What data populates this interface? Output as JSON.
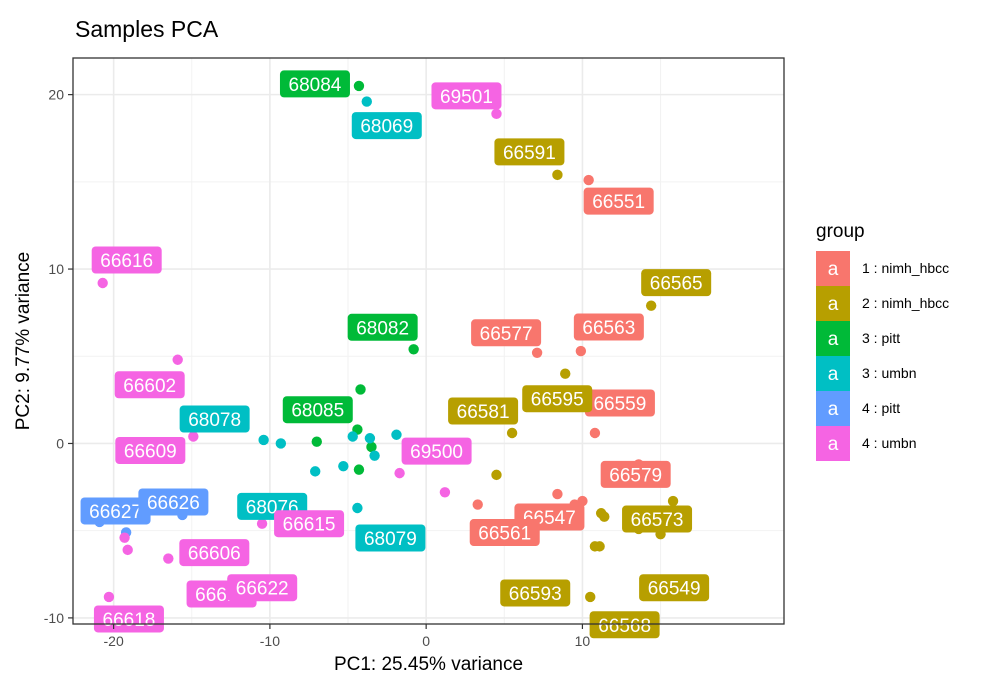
{
  "chart_data": {
    "type": "scatter",
    "title": "Samples PCA",
    "xlabel": "PC1: 25.45% variance",
    "ylabel": "PC2: 9.77% variance",
    "xlim": [
      -22.6,
      22.9
    ],
    "ylim": [
      -10.35,
      22.1
    ],
    "x_ticks": [
      -20,
      -10,
      0,
      10
    ],
    "y_ticks": [
      -10,
      0,
      10,
      20
    ],
    "x_tick_labels": [
      "-20",
      "-10",
      "0",
      "10"
    ],
    "y_tick_labels": [
      "-10",
      "0",
      "10",
      "20"
    ],
    "grid": true,
    "legend": {
      "title": "group",
      "position": "right",
      "key_glyph": "a"
    },
    "series": [
      {
        "name": "1 : nimh_hbcc",
        "color": "#F8766D",
        "points": [
          {
            "x": 10.4,
            "y": 15.1,
            "label": "66551"
          },
          {
            "x": 7.1,
            "y": 5.2,
            "label": "66577"
          },
          {
            "x": 9.9,
            "y": 5.3,
            "label": "66563"
          },
          {
            "x": 10.8,
            "y": 0.6,
            "label": "66559"
          },
          {
            "x": 13.6,
            "y": -1.2,
            "label": "66579"
          },
          {
            "x": 8.4,
            "y": -2.9,
            "label": "66547"
          },
          {
            "x": 3.3,
            "y": -3.5,
            "label": "66561"
          },
          {
            "x": 9.5,
            "y": -3.5
          },
          {
            "x": 10.0,
            "y": -3.3
          }
        ]
      },
      {
        "name": "2 : nimh_hbcc",
        "color": "#B79F00",
        "points": [
          {
            "x": 8.4,
            "y": 15.4,
            "label": "66591"
          },
          {
            "x": 14.4,
            "y": 7.9,
            "label": "66565"
          },
          {
            "x": 8.9,
            "y": 4.0,
            "label": "66595"
          },
          {
            "x": 5.5,
            "y": 0.6,
            "label": "66581"
          },
          {
            "x": 4.5,
            "y": -1.8
          },
          {
            "x": 15.8,
            "y": -3.3,
            "label": "66573"
          },
          {
            "x": 11.2,
            "y": -4.0
          },
          {
            "x": 11.4,
            "y": -4.2
          },
          {
            "x": 13.6,
            "y": -4.9
          },
          {
            "x": 15.0,
            "y": -4.9
          },
          {
            "x": 15.0,
            "y": -5.2
          },
          {
            "x": 10.8,
            "y": -5.9
          },
          {
            "x": 11.1,
            "y": -5.9
          },
          {
            "x": 14.3,
            "y": -8.1,
            "label": "66568"
          },
          {
            "x": 10.5,
            "y": -8.8,
            "label": "66593"
          },
          {
            "x": 15.1,
            "y": -8.5,
            "label": "66549"
          }
        ]
      },
      {
        "name": "3 : pitt",
        "color": "#00BA38",
        "points": [
          {
            "x": -4.3,
            "y": 20.5,
            "label": "68084"
          },
          {
            "x": -0.8,
            "y": 5.4,
            "label": "68082"
          },
          {
            "x": -4.2,
            "y": 3.1
          },
          {
            "x": -7.0,
            "y": 0.1,
            "label": "68085"
          },
          {
            "x": -4.4,
            "y": 0.8
          },
          {
            "x": -3.5,
            "y": -0.2
          },
          {
            "x": -4.3,
            "y": -1.5
          }
        ]
      },
      {
        "name": "3 : umbn",
        "color": "#00BFC4",
        "points": [
          {
            "x": -3.8,
            "y": 19.6,
            "label": "68069"
          },
          {
            "x": -10.4,
            "y": 0.2,
            "label": "68078"
          },
          {
            "x": -9.3,
            "y": 0.0
          },
          {
            "x": -7.1,
            "y": -1.6,
            "label": "68076"
          },
          {
            "x": -5.3,
            "y": -1.3
          },
          {
            "x": -4.7,
            "y": 0.4
          },
          {
            "x": -3.6,
            "y": 0.3
          },
          {
            "x": -1.9,
            "y": 0.5
          },
          {
            "x": -3.3,
            "y": -0.7
          },
          {
            "x": -4.4,
            "y": -3.7,
            "label": "68079"
          }
        ]
      },
      {
        "name": "4 : pitt",
        "color": "#619CFF",
        "points": [
          {
            "x": -20.9,
            "y": -4.5,
            "label": "66627"
          },
          {
            "x": -19.2,
            "y": -5.1
          },
          {
            "x": -15.6,
            "y": -4.1,
            "label": "66626"
          }
        ]
      },
      {
        "name": "4 : umbn",
        "color": "#F564E3",
        "points": [
          {
            "x": 4.5,
            "y": 18.9,
            "label": "69501"
          },
          {
            "x": -20.7,
            "y": 9.2,
            "label": "66616"
          },
          {
            "x": -15.9,
            "y": 4.8,
            "label": "66602"
          },
          {
            "x": -14.9,
            "y": 0.4,
            "label": "66609"
          },
          {
            "x": -1.7,
            "y": -1.7,
            "label": "69500"
          },
          {
            "x": 1.2,
            "y": -2.8
          },
          {
            "x": -10.5,
            "y": -4.6,
            "label": "66615"
          },
          {
            "x": -19.3,
            "y": -5.4
          },
          {
            "x": -19.1,
            "y": -6.1
          },
          {
            "x": -16.5,
            "y": -6.6,
            "label": "66606"
          },
          {
            "x": -20.3,
            "y": -8.8,
            "label": "66618"
          },
          {
            "x": -14.5,
            "y": -8.4,
            "label": "66614"
          },
          {
            "x": -11.9,
            "y": -8.5,
            "label": "66622"
          }
        ]
      }
    ]
  }
}
